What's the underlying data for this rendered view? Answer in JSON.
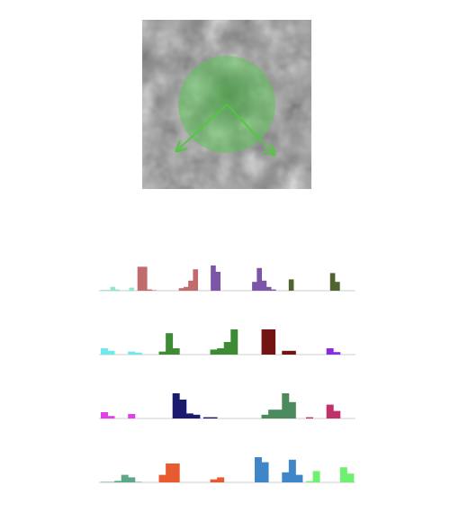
{
  "colors": {
    "background": "#ffffff",
    "circle": "#5fc25a",
    "arrow": "#4ecb3a",
    "baseline": "#cfcfcf"
  },
  "arrows": [
    "left-down-arrow",
    "right-down-arrow"
  ],
  "chart_data": {
    "type": "bar",
    "rows": [
      {
        "name": "row-1",
        "groups": [
          {
            "color": "#8fe8c8",
            "values": [
              0.03,
              0.03,
              0.15,
              0.05,
              0.0,
              0.02,
              0.12
            ]
          },
          {
            "color": "#c06c6c",
            "values": [
              0.95,
              0.95,
              0.05,
              0.02,
              0.0,
              0.0,
              0.0
            ]
          },
          {
            "color": "#c06c6c",
            "values": [
              0.0,
              0.1,
              0.15,
              0.4,
              0.85,
              0.0,
              0.0
            ]
          },
          {
            "color": "#7b56a8",
            "values": [
              1.0,
              0.75,
              0.0,
              0.0,
              0.0,
              0.0,
              0.0
            ]
          },
          {
            "color": "#7b56a8",
            "values": [
              0.0,
              0.35,
              0.9,
              0.4,
              0.15,
              0.05,
              0.0
            ]
          },
          {
            "color": "#4f6430",
            "values": [
              0.0,
              0.45,
              0.0,
              0.0,
              0.0,
              0.0,
              0.0
            ]
          },
          {
            "color": "#4f6430",
            "values": [
              0.0,
              0.0,
              0.7,
              0.35,
              0.0,
              0.0,
              0.0
            ]
          }
        ]
      },
      {
        "name": "row-2",
        "groups": [
          {
            "color": "#6fe8ee",
            "values": [
              0.25,
              0.15,
              0.0,
              0.0,
              0.12,
              0.08,
              0.0
            ]
          },
          {
            "color": "#3e8a35",
            "values": [
              0.0,
              0.12,
              0.85,
              0.25,
              0.0,
              0.0,
              0.0
            ]
          },
          {
            "color": "#3e8a35",
            "values": [
              0.0,
              0.2,
              0.25,
              0.5,
              1.0,
              0.0,
              0.0
            ]
          },
          {
            "color": "#741313",
            "values": [
              0.0,
              1.0,
              1.0,
              0.0,
              0.15,
              0.15,
              0.0
            ]
          },
          {
            "color": "#8a2be2",
            "values": [
              0.0,
              0.0,
              0.0,
              0.25,
              0.1,
              0.0,
              0.0
            ]
          }
        ]
      },
      {
        "name": "row-3",
        "groups": [
          {
            "color": "#e040e8",
            "values": [
              0.25,
              0.1,
              0.0,
              0.0,
              0.18,
              0.0,
              0.0
            ]
          },
          {
            "color": "#1a1a6e",
            "values": [
              0.0,
              0.0,
              0.0,
              1.0,
              0.75,
              0.2,
              0.15
            ]
          },
          {
            "color": "#1a1a6e",
            "values": [
              0.05,
              0.05,
              0.0,
              0.0,
              0.0,
              0.0,
              0.0
            ]
          },
          {
            "color": "#4a8a5c",
            "values": [
              0.0,
              0.15,
              0.35,
              0.35,
              1.0,
              0.65,
              0.0
            ]
          },
          {
            "color": "#c0306a",
            "values": [
              0.05,
              0.0,
              0.0,
              0.55,
              0.3,
              0.0,
              0.0
            ]
          }
        ]
      },
      {
        "name": "row-4",
        "groups": [
          {
            "color": "#5aa888",
            "values": [
              0.02,
              0.02,
              0.06,
              0.3,
              0.2,
              0.02,
              0.0
            ]
          },
          {
            "color": "#e85a30",
            "values": [
              0.0,
              0.3,
              0.75,
              0.75,
              0.0,
              0.0,
              0.0
            ]
          },
          {
            "color": "#e85a30",
            "values": [
              0.0,
              0.12,
              0.2,
              0.0,
              0.0,
              0.0,
              0.0
            ]
          },
          {
            "color": "#3f86c8",
            "values": [
              1.0,
              0.8,
              0.0,
              0.0,
              0.4,
              0.9,
              0.3
            ]
          },
          {
            "color": "#70f070",
            "values": [
              0.05,
              0.45,
              0.0,
              0.0,
              0.0,
              0.6,
              0.35
            ]
          }
        ]
      }
    ]
  }
}
